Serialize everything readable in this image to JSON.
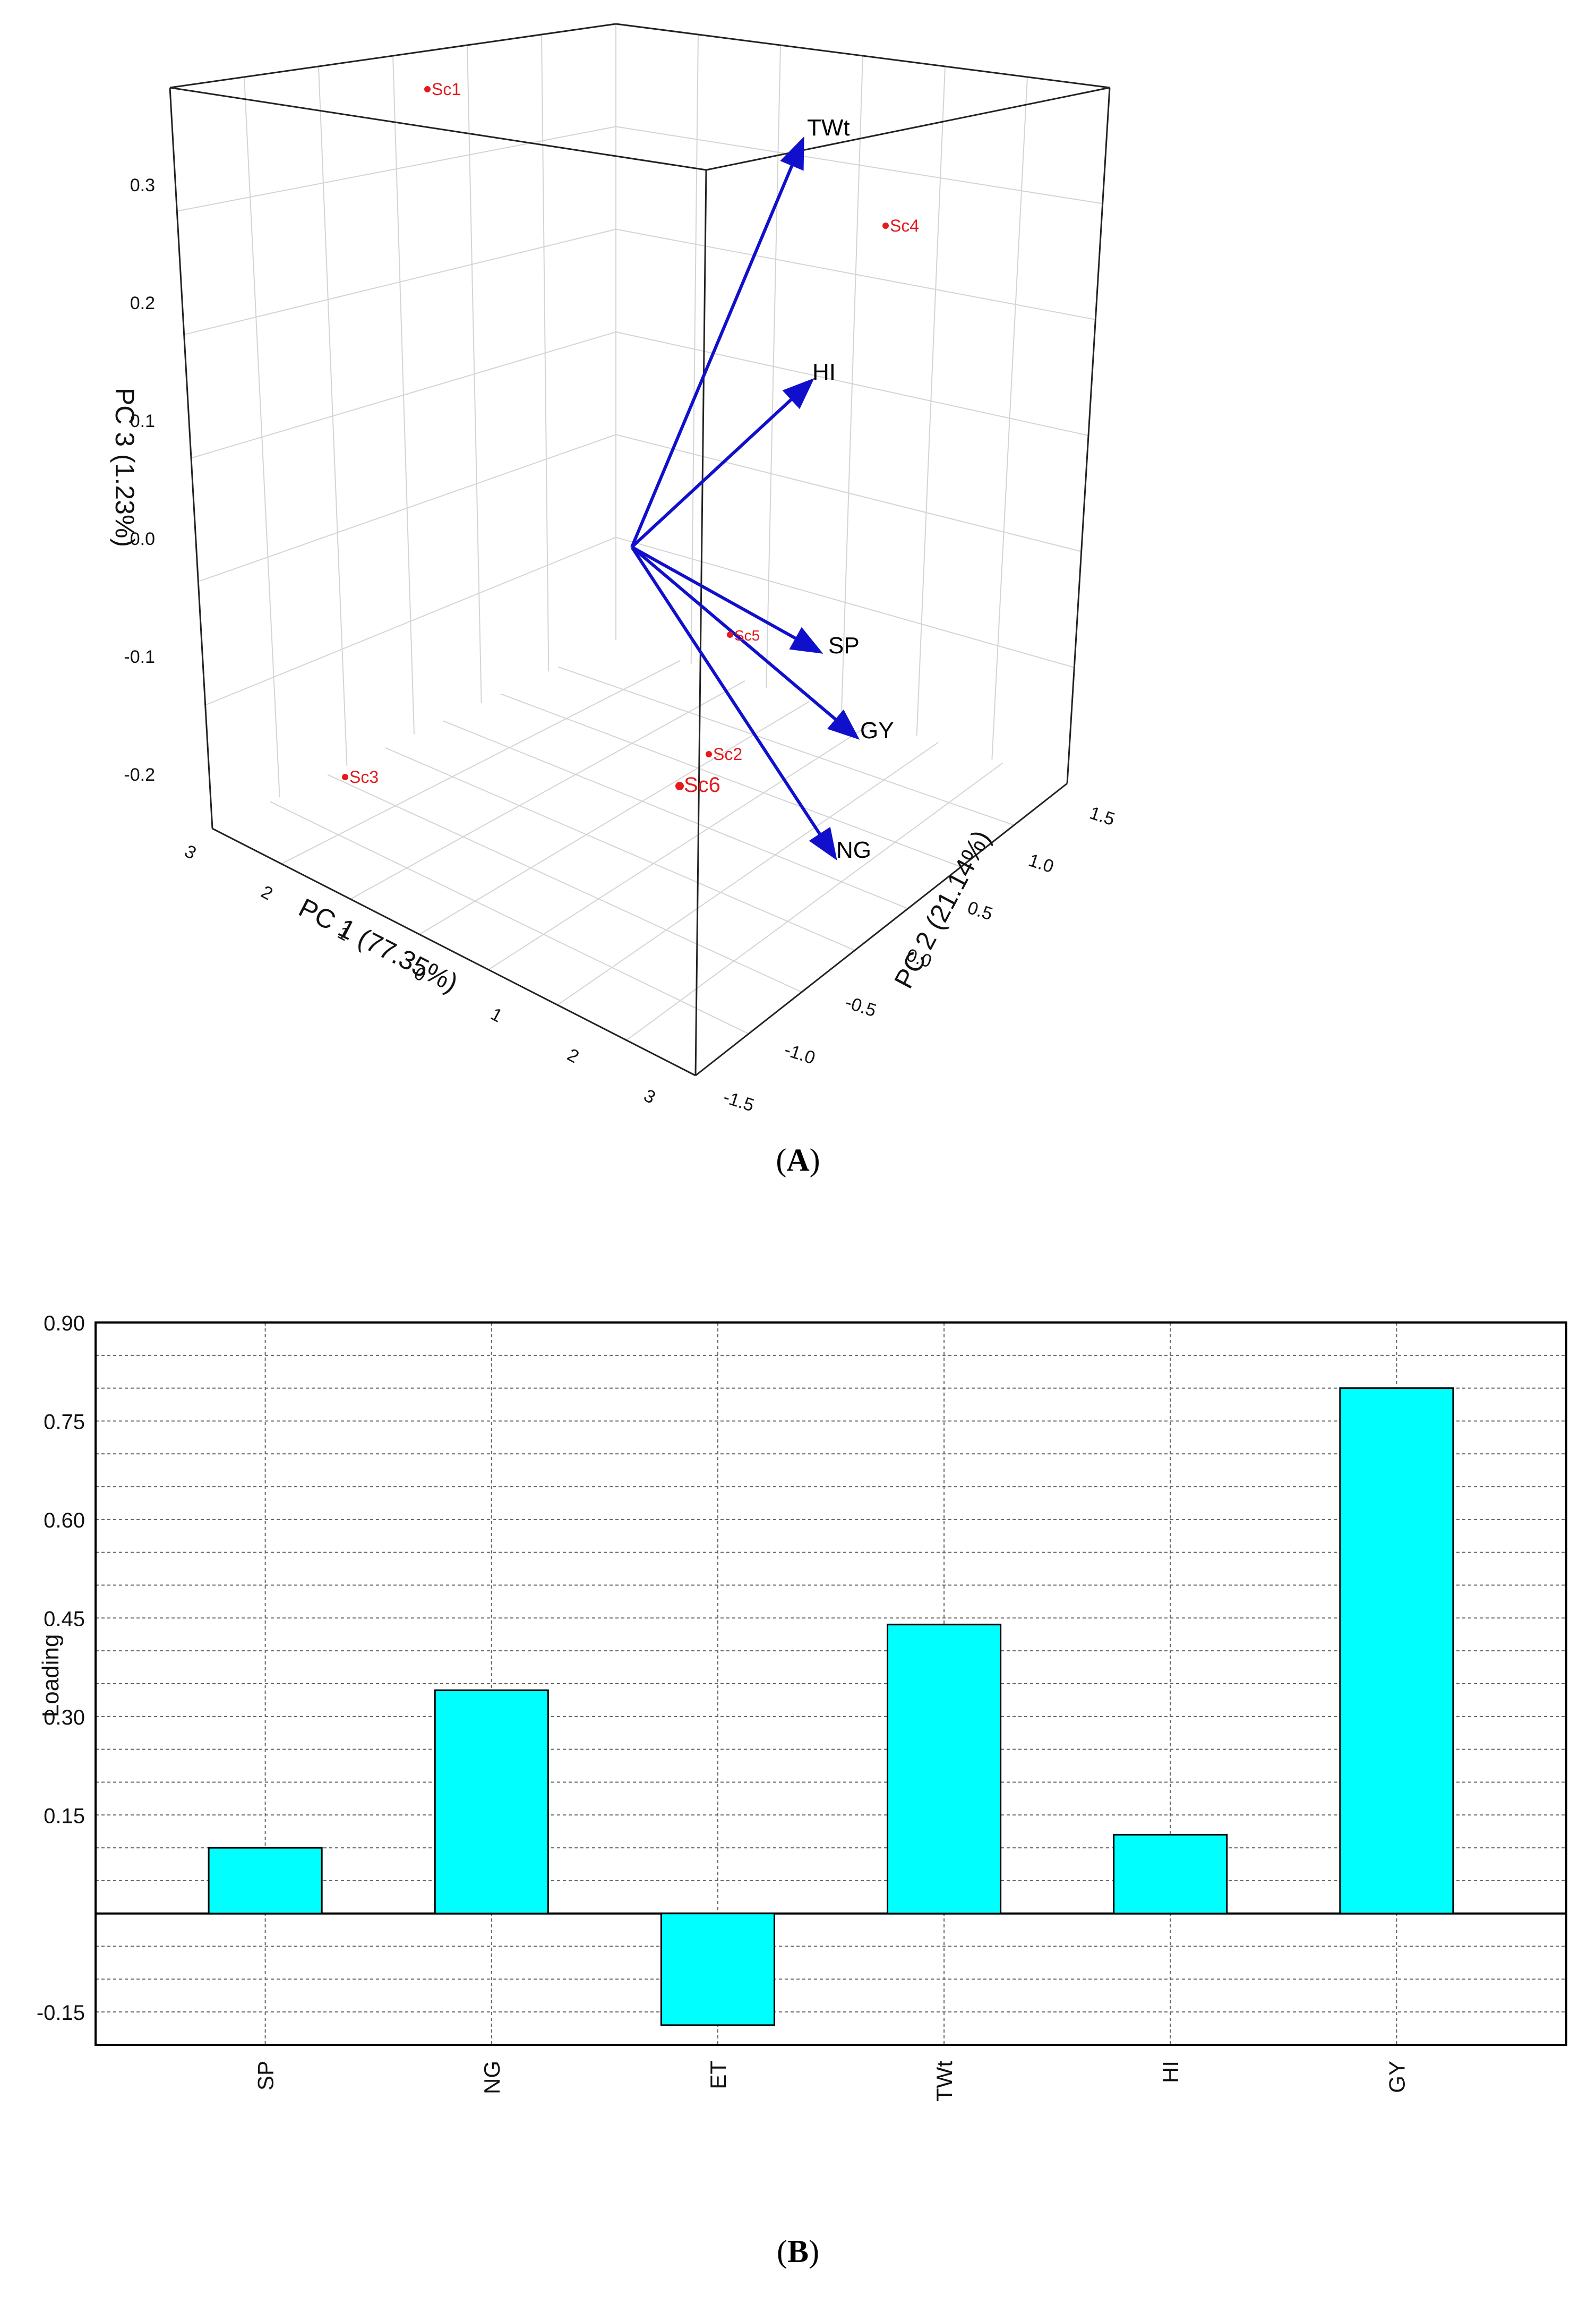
{
  "chart_data": [
    {
      "type": "scatter",
      "panel": "A",
      "xlabel": "PC 1 (77.35%)",
      "ylabel": "PC 2 (21.14%)",
      "zlabel": "PC 3 (1.23%)",
      "x_ticks": [
        "3",
        "2",
        "1",
        "0",
        "1",
        "2",
        "3"
      ],
      "y_ticks": [
        "1.5",
        "1.0",
        "0.5",
        "0.0",
        "-0.5",
        "-1.0",
        "-1.5"
      ],
      "z_ticks": [
        "0.3",
        "0.2",
        "0.1",
        "0.0",
        "-0.1",
        "-0.2"
      ],
      "points": [
        {
          "label": "Sc1",
          "z": 0.37
        },
        {
          "label": "Sc2",
          "z": -0.15
        },
        {
          "label": "Sc3",
          "z": -0.17
        },
        {
          "label": "Sc4",
          "z": 0.27
        },
        {
          "label": "Sc5",
          "z": -0.07
        },
        {
          "label": "Sc6",
          "z": -0.17
        }
      ],
      "vectors": [
        {
          "label": "TWt"
        },
        {
          "label": "HI"
        },
        {
          "label": "SP"
        },
        {
          "label": "GY"
        },
        {
          "label": "NG"
        }
      ],
      "colors": {
        "points": "#e41a1c",
        "vectors": "#1010cc"
      }
    },
    {
      "type": "bar",
      "panel": "B",
      "categories": [
        "SP",
        "NG",
        "ET",
        "TWt",
        "HI",
        "GY"
      ],
      "values": [
        0.1,
        0.34,
        -0.17,
        0.44,
        0.12,
        0.8
      ],
      "ylabel": "Loading",
      "ylim": [
        -0.2,
        0.9
      ],
      "yticks": [
        "0.90",
        "0.75",
        "0.60",
        "0.45",
        "0.30",
        "0.15",
        "-0.15"
      ],
      "grid": true,
      "colors": {
        "bar": "#00ffff"
      }
    }
  ],
  "captions": {
    "a": "A",
    "b": "B"
  }
}
